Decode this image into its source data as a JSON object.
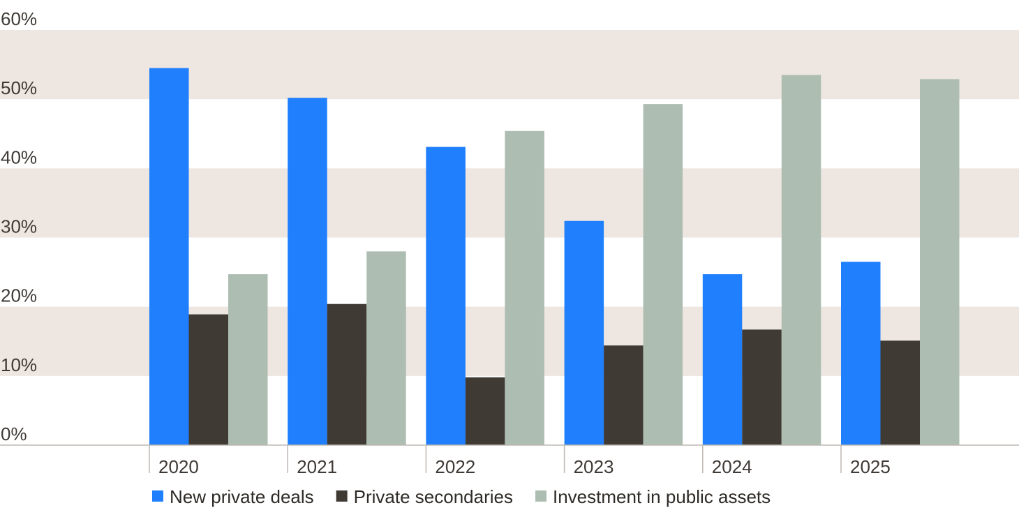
{
  "chart_data": {
    "type": "bar",
    "title": "",
    "xlabel": "",
    "ylabel": "",
    "categories": [
      "2020",
      "2021",
      "2022",
      "2023",
      "2024",
      "2025"
    ],
    "series": [
      {
        "name": "New private deals",
        "values": [
          54.5,
          50.2,
          43.1,
          32.4,
          24.7,
          26.5
        ],
        "color": "#1f7ffd"
      },
      {
        "name": "Private secondaries",
        "values": [
          18.9,
          20.4,
          9.8,
          14.4,
          16.7,
          15.1
        ],
        "color": "#3f3a33"
      },
      {
        "name": "Investment in public assets",
        "values": [
          24.7,
          28.0,
          45.4,
          49.3,
          53.5,
          52.9
        ],
        "color": "#aebdb2"
      }
    ],
    "ylim": [
      0,
      60
    ],
    "yticks": [
      0,
      10,
      20,
      30,
      40,
      50,
      60
    ],
    "ytick_labels": [
      "0%",
      "10%",
      "20%",
      "30%",
      "40%",
      "50%",
      "60%"
    ],
    "grid": "alternating horizontal bands",
    "band_color": "#ede6e1",
    "legend_position": "bottom"
  }
}
